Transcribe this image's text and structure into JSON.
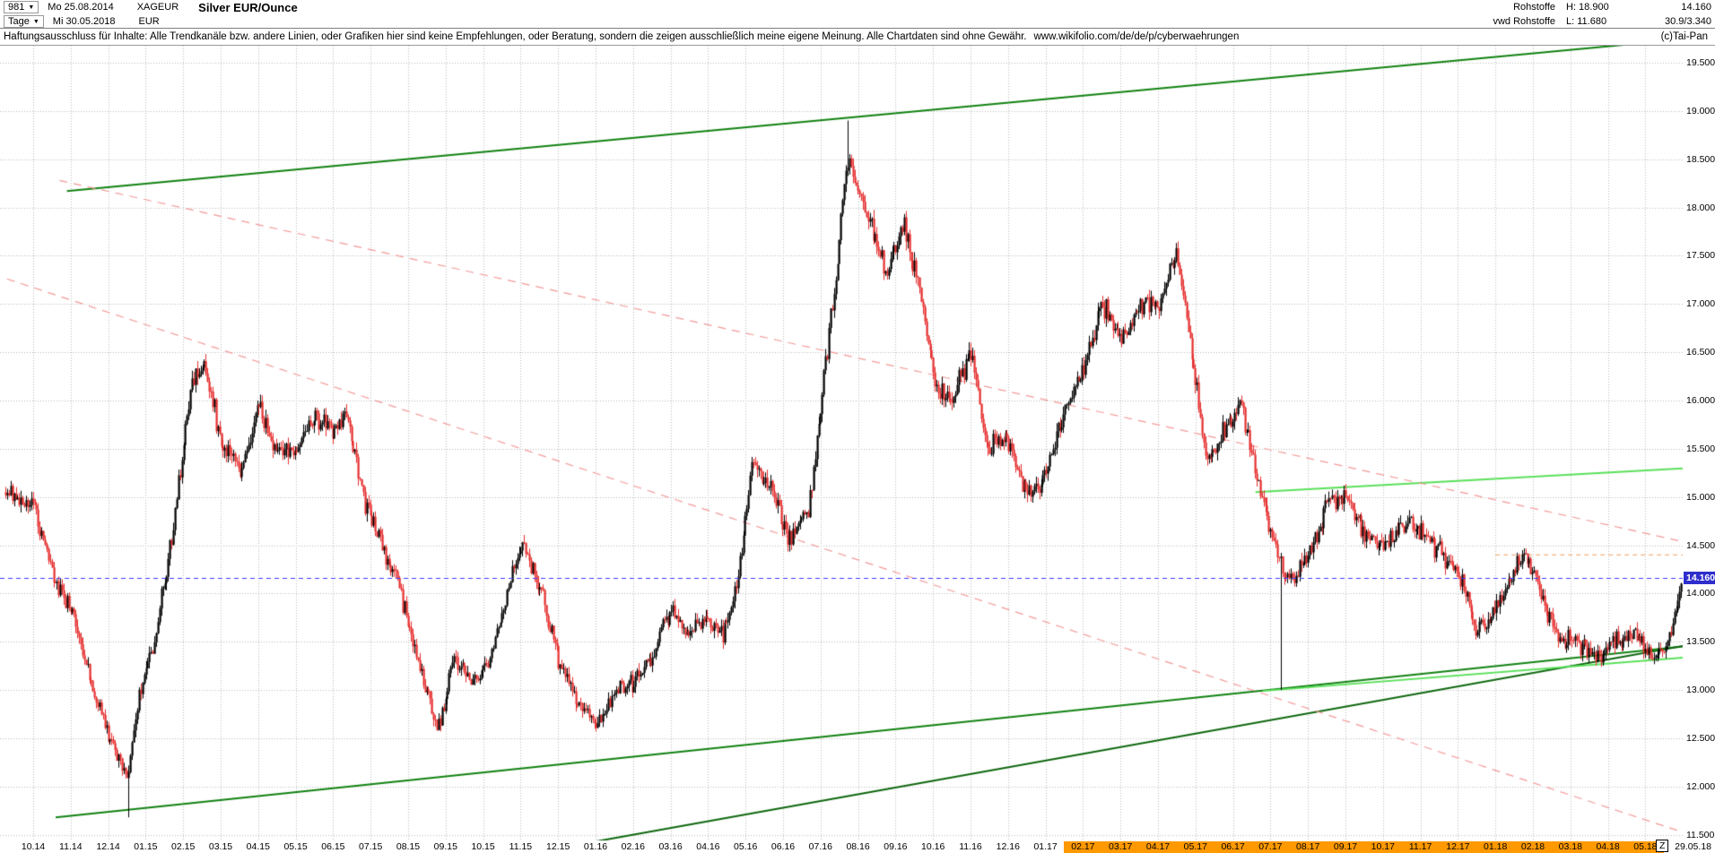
{
  "icons": {
    "dropdown_arrow": "▼"
  },
  "header": {
    "bars_count": "981",
    "date_start": "Mo 25.08.2014",
    "symbol": "XAGEUR",
    "title": "Silver EUR/Ounce",
    "timeframe": "Tage",
    "date_end": "Mi 30.05.2018",
    "currency": "EUR",
    "feed_name": "Rohstoffe",
    "feed_source": "vwd Rohstoffe",
    "high_label": "H: 18.900",
    "low_label": "L: 11.680",
    "last_price": "14.160",
    "secondary_value": "30.9/3.340",
    "copyright": "(c)Tai-Pan"
  },
  "disclaimer": {
    "text": "Haftungsausschluss für Inhalte: Alle Trendkanäle bzw. andere Linien, oder Grafiken hier sind keine Empfehlungen, oder Beratung, sondern die zeigen ausschließlich meine eigene Meinung. Alle Chartdaten sind ohne Gewähr.",
    "url": "www.wikifolio.com/de/de/p/cyberwaehrungen"
  },
  "chart_data": {
    "type": "candlestick",
    "title": "Silver EUR/Ounce",
    "symbol": "XAGEUR",
    "timeframe": "Tage",
    "bar_count": 981,
    "period_high": 18.9,
    "period_low": 11.68,
    "last": 14.16,
    "last_label": "14.160",
    "current_price_line": 14.16,
    "y_axis": {
      "min": 11.5,
      "max": 19.5,
      "step": 0.5,
      "grid": true
    },
    "x_axis": {
      "labels": [
        "10.14",
        "11.14",
        "12.14",
        "01.15",
        "02.15",
        "03.15",
        "04.15",
        "05.15",
        "06.15",
        "07.15",
        "08.15",
        "09.15",
        "10.15",
        "11.15",
        "12.15",
        "01.16",
        "02.16",
        "03.16",
        "04.16",
        "05.16",
        "06.16",
        "07.16",
        "08.16",
        "09.16",
        "10.16",
        "11.16",
        "12.16",
        "01.17",
        "02.17",
        "03.17",
        "04.17",
        "05.17",
        "06.17",
        "07.17",
        "08.17",
        "09.17",
        "10.17",
        "11.17",
        "12.17",
        "01.18",
        "02.18",
        "03.18",
        "04.18",
        "05.18"
      ],
      "highlight_from_index": 28,
      "highlight_color": "#ff9900",
      "end_marker": "Z",
      "end_date": "29.05.18"
    },
    "colors": {
      "up": "#000000",
      "down": "#e62e2e",
      "grid": "#bcbcbc",
      "background": "#ffffff",
      "current_price_line": "#3b3bff",
      "price_tag_bg": "#2e2ecc",
      "trend_green_dark": "#128212",
      "trend_green_light": "#5ae05a",
      "trend_red_dashed": "#f49a9a"
    },
    "anchors": [
      [
        -0.74,
        15.05
      ],
      [
        0,
        14.95
      ],
      [
        0.5,
        14.2
      ],
      [
        1,
        13.85
      ],
      [
        1.5,
        13.1
      ],
      [
        2,
        12.55
      ],
      [
        2.5,
        12.1
      ],
      [
        2.8,
        12.9
      ],
      [
        3.2,
        13.45
      ],
      [
        3.7,
        14.6
      ],
      [
        4.2,
        16.1
      ],
      [
        4.5,
        16.45
      ],
      [
        5,
        15.6
      ],
      [
        5.5,
        15.25
      ],
      [
        6,
        15.9
      ],
      [
        6.5,
        15.5
      ],
      [
        7,
        15.45
      ],
      [
        7.5,
        15.85
      ],
      [
        8,
        15.7
      ],
      [
        8.3,
        15.95
      ],
      [
        8.8,
        15.0
      ],
      [
        9.3,
        14.5
      ],
      [
        9.8,
        14.0
      ],
      [
        10.3,
        13.2
      ],
      [
        10.8,
        12.6
      ],
      [
        11.2,
        13.35
      ],
      [
        11.7,
        13.1
      ],
      [
        12.2,
        13.35
      ],
      [
        12.7,
        14.1
      ],
      [
        13.0,
        14.55
      ],
      [
        13.5,
        14.1
      ],
      [
        14.0,
        13.3
      ],
      [
        14.5,
        12.9
      ],
      [
        15.0,
        12.62
      ],
      [
        15.4,
        12.95
      ],
      [
        16.0,
        13.1
      ],
      [
        16.5,
        13.35
      ],
      [
        17.0,
        13.85
      ],
      [
        17.5,
        13.6
      ],
      [
        18.0,
        13.75
      ],
      [
        18.4,
        13.55
      ],
      [
        18.8,
        14.2
      ],
      [
        19.2,
        15.35
      ],
      [
        19.7,
        15.1
      ],
      [
        20.2,
        14.55
      ],
      [
        20.7,
        14.9
      ],
      [
        21.0,
        15.95
      ],
      [
        21.4,
        17.3
      ],
      [
        21.7,
        18.55
      ],
      [
        22.0,
        18.2
      ],
      [
        22.4,
        17.75
      ],
      [
        22.8,
        17.3
      ],
      [
        23.2,
        17.85
      ],
      [
        23.6,
        17.25
      ],
      [
        24.1,
        16.1
      ],
      [
        24.5,
        16.0
      ],
      [
        25.0,
        16.55
      ],
      [
        25.4,
        15.55
      ],
      [
        26.0,
        15.6
      ],
      [
        26.5,
        15.0
      ],
      [
        27.0,
        15.25
      ],
      [
        27.5,
        15.9
      ],
      [
        28.0,
        16.35
      ],
      [
        28.5,
        17.0
      ],
      [
        29.0,
        16.6
      ],
      [
        29.5,
        17.0
      ],
      [
        30.0,
        16.95
      ],
      [
        30.5,
        17.55
      ],
      [
        31.0,
        16.2
      ],
      [
        31.3,
        15.35
      ],
      [
        31.8,
        15.7
      ],
      [
        32.2,
        15.95
      ],
      [
        32.7,
        15.1
      ],
      [
        33.2,
        14.35
      ],
      [
        33.6,
        14.1
      ],
      [
        34.0,
        14.45
      ],
      [
        34.5,
        14.9
      ],
      [
        35.0,
        15.05
      ],
      [
        35.5,
        14.6
      ],
      [
        36.0,
        14.5
      ],
      [
        36.5,
        14.7
      ],
      [
        37.0,
        14.65
      ],
      [
        37.5,
        14.45
      ],
      [
        38.0,
        14.25
      ],
      [
        38.5,
        13.6
      ],
      [
        39.0,
        13.85
      ],
      [
        39.5,
        14.25
      ],
      [
        39.8,
        14.45
      ],
      [
        40.3,
        13.9
      ],
      [
        40.7,
        13.55
      ],
      [
        41.2,
        13.45
      ],
      [
        41.7,
        13.35
      ],
      [
        42.2,
        13.5
      ],
      [
        42.7,
        13.6
      ],
      [
        43.2,
        13.3
      ],
      [
        43.6,
        13.5
      ],
      [
        44.0,
        14.16
      ]
    ],
    "spikes": [
      {
        "m": 2.55,
        "low": 11.68
      },
      {
        "m": 21.72,
        "high": 18.9
      },
      {
        "m": 33.25,
        "low": 13.0
      }
    ],
    "trendlines": [
      {
        "name": "upper-channel-line",
        "color": "#128212",
        "width": 2,
        "dash": null,
        "m1": 0.9,
        "p1": 18.17,
        "m2": 44.2,
        "p2": 19.75
      },
      {
        "name": "lower-support-long",
        "color": "#128212",
        "width": 2,
        "dash": null,
        "m1": 0.6,
        "p1": 11.68,
        "m2": 44.2,
        "p2": 13.46
      },
      {
        "name": "lower-support-steep",
        "color": "#0c660c",
        "width": 2,
        "dash": null,
        "m1": 15.0,
        "p1": 11.43,
        "m2": 44.2,
        "p2": 13.47
      },
      {
        "name": "resistance-light-upper",
        "color": "#5ae05a",
        "width": 2,
        "dash": null,
        "m1": 32.6,
        "p1": 15.05,
        "m2": 44.2,
        "p2": 15.3
      },
      {
        "name": "support-light-lower",
        "color": "#5ae05a",
        "width": 2,
        "dash": null,
        "m1": 32.8,
        "p1": 12.99,
        "m2": 44.2,
        "p2": 13.34
      },
      {
        "name": "downtrend-dashed-upper",
        "color": "#f49a9a",
        "width": 1.2,
        "dash": [
          9,
          7
        ],
        "m1": 0.7,
        "p1": 18.28,
        "m2": 44.2,
        "p2": 14.52
      },
      {
        "name": "downtrend-dashed-lower",
        "color": "#f49a9a",
        "width": 1.2,
        "dash": [
          9,
          7
        ],
        "m1": -0.7,
        "p1": 17.26,
        "m2": 44.2,
        "p2": 11.5
      },
      {
        "name": "short-resistance-dashed",
        "color": "#f0a060",
        "width": 1,
        "dash": [
          5,
          4
        ],
        "m1": 39.0,
        "p1": 14.4,
        "m2": 44.2,
        "p2": 14.4
      }
    ]
  }
}
